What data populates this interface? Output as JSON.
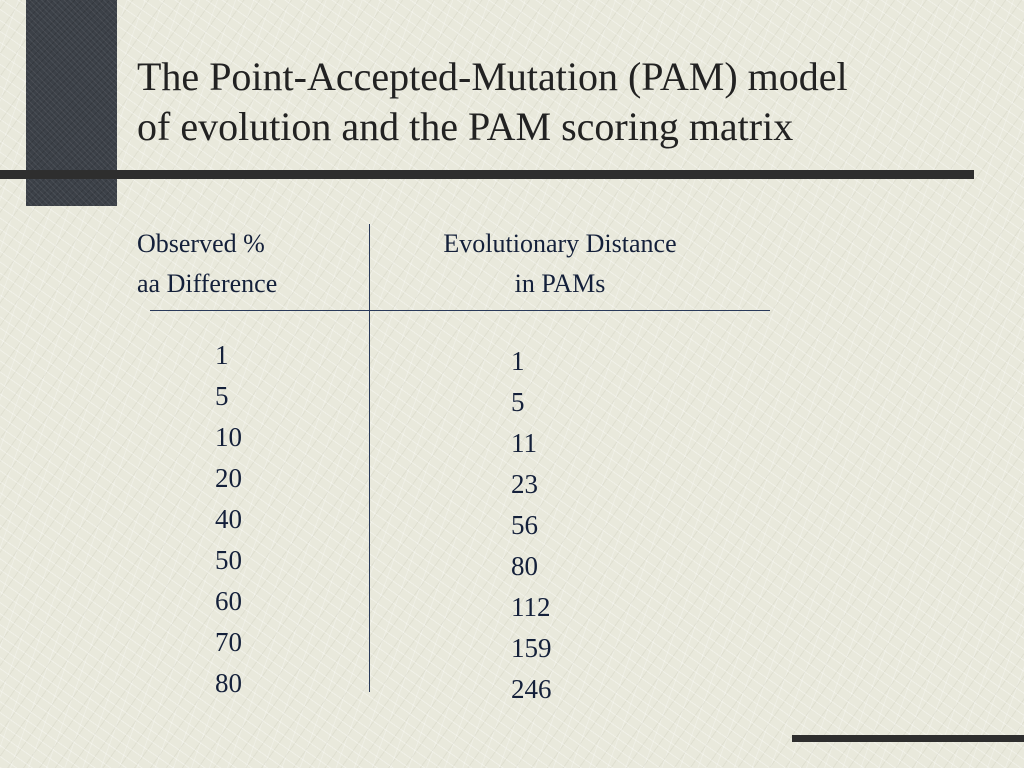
{
  "slide": {
    "title_lines": [
      "The Point-Accepted-Mutation (PAM) model",
      "of evolution and the PAM scoring matrix"
    ]
  },
  "table": {
    "header_left": [
      "Observed %",
      "aa Difference"
    ],
    "header_right": [
      "Evolutionary Distance",
      "in PAMs"
    ],
    "observed_percent_difference": [
      "1",
      "5",
      "10",
      "20",
      "40",
      "50",
      "60",
      "70",
      "80"
    ],
    "evolutionary_distance_pams": [
      "1",
      "5",
      "11",
      "23",
      "56",
      "80",
      "112",
      "159",
      "246"
    ]
  },
  "colors": {
    "background": "#e9e9dc",
    "accent_block": "#3c4148",
    "rules": "#2e2e2e",
    "table_text": "#14203a"
  }
}
